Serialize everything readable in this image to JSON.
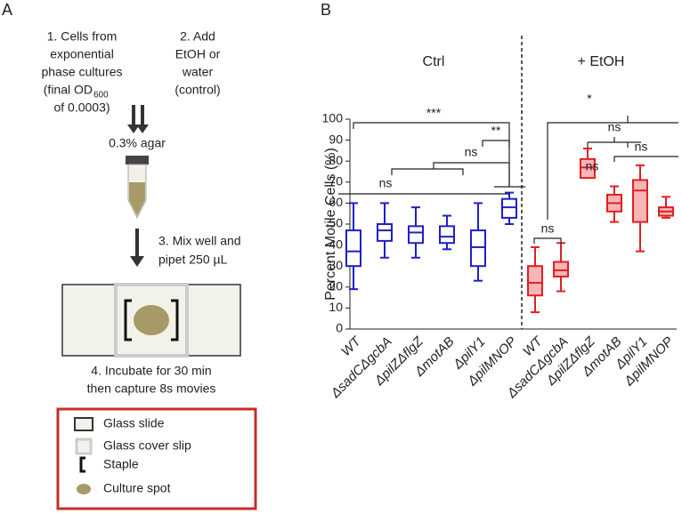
{
  "panel_a": {
    "label": "A",
    "step1": [
      "1. Cells from",
      "exponential",
      "phase cultures",
      "(final OD",
      "600",
      "of 0.0003)"
    ],
    "step2": [
      "2. Add",
      "EtOH or",
      "water",
      "(control)"
    ],
    "agar": "0.3% agar",
    "step3": [
      "3. Mix well and",
      "pipet 250 µL"
    ],
    "step4": [
      "4. Incubate for 30 min",
      "then capture 8s movies"
    ],
    "legend": [
      "Glass slide",
      "Glass cover slip",
      "Staple",
      "Culture spot"
    ]
  },
  "chart_data": {
    "type": "box",
    "label": "B",
    "ylabel": "Percent Motile Cells (%)",
    "ylim": [
      0,
      100
    ],
    "yticks": [
      0,
      10,
      20,
      30,
      40,
      50,
      60,
      70,
      80,
      90,
      100
    ],
    "groups": [
      {
        "name": "Ctrl",
        "color": "#1f1fc8",
        "fill": "#ffffff",
        "categories": [
          "WT",
          "ΔsadCΔgcbA",
          "ΔpilZΔflgZ",
          "ΔmotAB",
          "ΔpilY1",
          "ΔpilMNOP"
        ],
        "boxes": [
          {
            "min": 19,
            "q1": 30,
            "median": 37,
            "q3": 47,
            "max": 60
          },
          {
            "min": 34,
            "q1": 42,
            "median": 47,
            "q3": 50,
            "max": 60
          },
          {
            "min": 34,
            "q1": 41,
            "median": 46,
            "q3": 49,
            "max": 58
          },
          {
            "min": 38,
            "q1": 41,
            "median": 44,
            "q3": 49,
            "max": 54
          },
          {
            "min": 23,
            "q1": 30,
            "median": 39,
            "q3": 47,
            "max": 60
          },
          {
            "min": 50,
            "q1": 53,
            "median": 58,
            "q3": 62,
            "max": 65
          }
        ]
      },
      {
        "name": "+ EtOH",
        "color": "#e02020",
        "fill": "#f7b5b5",
        "categories": [
          "WT",
          "ΔsadCΔgcbA",
          "ΔpilZΔflgZ",
          "ΔmotAB",
          "ΔpilY1",
          "ΔpilMNOP"
        ],
        "boxes": [
          {
            "min": 8,
            "q1": 16,
            "median": 22,
            "q3": 30,
            "max": 39
          },
          {
            "min": 18,
            "q1": 25,
            "median": 28,
            "q3": 32,
            "max": 41
          },
          {
            "min": 72,
            "q1": 72,
            "median": 77,
            "q3": 81,
            "max": 86
          },
          {
            "min": 51,
            "q1": 56,
            "median": 60,
            "q3": 64,
            "max": 68
          },
          {
            "min": 37,
            "q1": 51,
            "median": 66,
            "q3": 71,
            "max": 78
          },
          {
            "min": 53,
            "q1": 54,
            "median": 56,
            "q3": 58,
            "max": 63
          }
        ]
      }
    ],
    "annotations": [
      "***",
      "**",
      "ns",
      "ns",
      "ns",
      "*",
      "ns",
      "ns",
      "ns"
    ]
  }
}
